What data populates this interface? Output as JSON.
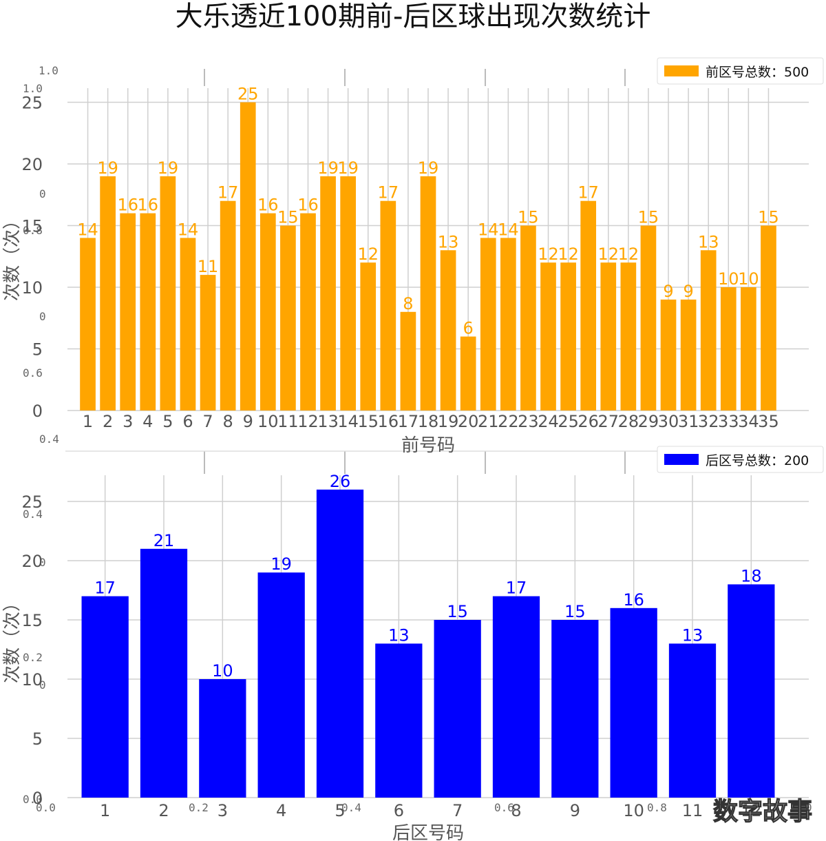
{
  "title": "大乐透近100期前-后区球出现次数统计",
  "watermark": "数字故事",
  "ghost_ticks": {
    "top_left": [
      "1.0",
      "1.0",
      "0",
      "0.8",
      "0",
      "0.6",
      "0.4"
    ],
    "mid_left": [
      "0.4",
      "0",
      "0.2",
      "0",
      "0.0"
    ],
    "bottom": [
      "0.0",
      "0.2",
      "0.4",
      "0.6",
      "0.8",
      "0"
    ]
  },
  "chart_data": [
    {
      "type": "bar",
      "name": "front",
      "color": "#FFA500",
      "legend": "前区号总数：500",
      "legend_loc": "top-right",
      "xlabel": "前号码",
      "ylabel": "次数（次）",
      "ylim": [
        0,
        27
      ],
      "yticks": [
        0,
        5,
        10,
        15,
        20,
        25
      ],
      "grid": true,
      "categories": [
        "1",
        "2",
        "3",
        "4",
        "5",
        "6",
        "7",
        "8",
        "9",
        "10",
        "11",
        "12",
        "13",
        "14",
        "15",
        "16",
        "17",
        "18",
        "19",
        "20",
        "21",
        "22",
        "23",
        "24",
        "25",
        "26",
        "27",
        "28",
        "29",
        "30",
        "31",
        "32",
        "33",
        "34",
        "35"
      ],
      "values": [
        14,
        19,
        16,
        16,
        19,
        14,
        11,
        17,
        25,
        16,
        15,
        16,
        19,
        19,
        12,
        17,
        8,
        19,
        13,
        6,
        14,
        14,
        15,
        12,
        12,
        17,
        12,
        12,
        15,
        9,
        9,
        13,
        10,
        10,
        15
      ]
    },
    {
      "type": "bar",
      "name": "back",
      "color": "#0000FF",
      "legend": "后区号总数：200",
      "legend_loc": "top-right",
      "xlabel": "后区号码",
      "ylabel": "次数（次）",
      "ylim": [
        0,
        27
      ],
      "yticks": [
        0,
        5,
        10,
        15,
        20,
        25
      ],
      "grid": true,
      "categories": [
        "1",
        "2",
        "3",
        "4",
        "5",
        "6",
        "7",
        "8",
        "9",
        "10",
        "11",
        "12"
      ],
      "values": [
        17,
        21,
        10,
        19,
        26,
        13,
        15,
        17,
        15,
        16,
        13,
        18
      ]
    }
  ]
}
